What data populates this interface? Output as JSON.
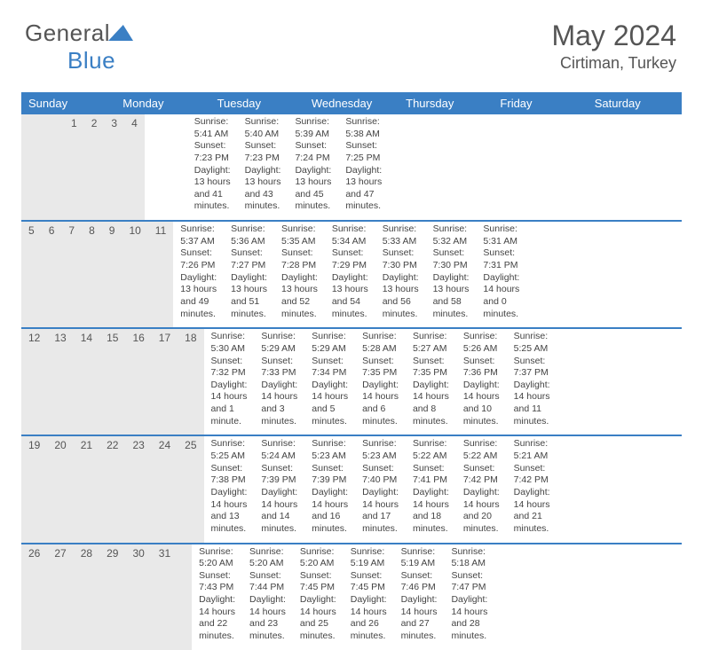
{
  "logo": {
    "text_general": "General",
    "text_blue": "Blue"
  },
  "header": {
    "month": "May 2024",
    "location": "Cirtiman, Turkey"
  },
  "colors": {
    "brand_blue": "#3a7fc4",
    "header_text": "#555555",
    "daynum_bg": "#e9e9e9",
    "body_text": "#444444",
    "background": "#ffffff"
  },
  "fonts": {
    "family": "Arial",
    "title_pt": 32,
    "subtitle_pt": 18,
    "dayhead_pt": 13,
    "daynum_pt": 12,
    "cell_pt": 10.5
  },
  "day_names": [
    "Sunday",
    "Monday",
    "Tuesday",
    "Wednesday",
    "Thursday",
    "Friday",
    "Saturday"
  ],
  "weeks": [
    [
      null,
      null,
      null,
      {
        "n": "1",
        "sr": "Sunrise: 5:41 AM",
        "ss": "Sunset: 7:23 PM",
        "d1": "Daylight: 13 hours",
        "d2": "and 41 minutes."
      },
      {
        "n": "2",
        "sr": "Sunrise: 5:40 AM",
        "ss": "Sunset: 7:23 PM",
        "d1": "Daylight: 13 hours",
        "d2": "and 43 minutes."
      },
      {
        "n": "3",
        "sr": "Sunrise: 5:39 AM",
        "ss": "Sunset: 7:24 PM",
        "d1": "Daylight: 13 hours",
        "d2": "and 45 minutes."
      },
      {
        "n": "4",
        "sr": "Sunrise: 5:38 AM",
        "ss": "Sunset: 7:25 PM",
        "d1": "Daylight: 13 hours",
        "d2": "and 47 minutes."
      }
    ],
    [
      {
        "n": "5",
        "sr": "Sunrise: 5:37 AM",
        "ss": "Sunset: 7:26 PM",
        "d1": "Daylight: 13 hours",
        "d2": "and 49 minutes."
      },
      {
        "n": "6",
        "sr": "Sunrise: 5:36 AM",
        "ss": "Sunset: 7:27 PM",
        "d1": "Daylight: 13 hours",
        "d2": "and 51 minutes."
      },
      {
        "n": "7",
        "sr": "Sunrise: 5:35 AM",
        "ss": "Sunset: 7:28 PM",
        "d1": "Daylight: 13 hours",
        "d2": "and 52 minutes."
      },
      {
        "n": "8",
        "sr": "Sunrise: 5:34 AM",
        "ss": "Sunset: 7:29 PM",
        "d1": "Daylight: 13 hours",
        "d2": "and 54 minutes."
      },
      {
        "n": "9",
        "sr": "Sunrise: 5:33 AM",
        "ss": "Sunset: 7:30 PM",
        "d1": "Daylight: 13 hours",
        "d2": "and 56 minutes."
      },
      {
        "n": "10",
        "sr": "Sunrise: 5:32 AM",
        "ss": "Sunset: 7:30 PM",
        "d1": "Daylight: 13 hours",
        "d2": "and 58 minutes."
      },
      {
        "n": "11",
        "sr": "Sunrise: 5:31 AM",
        "ss": "Sunset: 7:31 PM",
        "d1": "Daylight: 14 hours",
        "d2": "and 0 minutes."
      }
    ],
    [
      {
        "n": "12",
        "sr": "Sunrise: 5:30 AM",
        "ss": "Sunset: 7:32 PM",
        "d1": "Daylight: 14 hours",
        "d2": "and 1 minute."
      },
      {
        "n": "13",
        "sr": "Sunrise: 5:29 AM",
        "ss": "Sunset: 7:33 PM",
        "d1": "Daylight: 14 hours",
        "d2": "and 3 minutes."
      },
      {
        "n": "14",
        "sr": "Sunrise: 5:29 AM",
        "ss": "Sunset: 7:34 PM",
        "d1": "Daylight: 14 hours",
        "d2": "and 5 minutes."
      },
      {
        "n": "15",
        "sr": "Sunrise: 5:28 AM",
        "ss": "Sunset: 7:35 PM",
        "d1": "Daylight: 14 hours",
        "d2": "and 6 minutes."
      },
      {
        "n": "16",
        "sr": "Sunrise: 5:27 AM",
        "ss": "Sunset: 7:35 PM",
        "d1": "Daylight: 14 hours",
        "d2": "and 8 minutes."
      },
      {
        "n": "17",
        "sr": "Sunrise: 5:26 AM",
        "ss": "Sunset: 7:36 PM",
        "d1": "Daylight: 14 hours",
        "d2": "and 10 minutes."
      },
      {
        "n": "18",
        "sr": "Sunrise: 5:25 AM",
        "ss": "Sunset: 7:37 PM",
        "d1": "Daylight: 14 hours",
        "d2": "and 11 minutes."
      }
    ],
    [
      {
        "n": "19",
        "sr": "Sunrise: 5:25 AM",
        "ss": "Sunset: 7:38 PM",
        "d1": "Daylight: 14 hours",
        "d2": "and 13 minutes."
      },
      {
        "n": "20",
        "sr": "Sunrise: 5:24 AM",
        "ss": "Sunset: 7:39 PM",
        "d1": "Daylight: 14 hours",
        "d2": "and 14 minutes."
      },
      {
        "n": "21",
        "sr": "Sunrise: 5:23 AM",
        "ss": "Sunset: 7:39 PM",
        "d1": "Daylight: 14 hours",
        "d2": "and 16 minutes."
      },
      {
        "n": "22",
        "sr": "Sunrise: 5:23 AM",
        "ss": "Sunset: 7:40 PM",
        "d1": "Daylight: 14 hours",
        "d2": "and 17 minutes."
      },
      {
        "n": "23",
        "sr": "Sunrise: 5:22 AM",
        "ss": "Sunset: 7:41 PM",
        "d1": "Daylight: 14 hours",
        "d2": "and 18 minutes."
      },
      {
        "n": "24",
        "sr": "Sunrise: 5:22 AM",
        "ss": "Sunset: 7:42 PM",
        "d1": "Daylight: 14 hours",
        "d2": "and 20 minutes."
      },
      {
        "n": "25",
        "sr": "Sunrise: 5:21 AM",
        "ss": "Sunset: 7:42 PM",
        "d1": "Daylight: 14 hours",
        "d2": "and 21 minutes."
      }
    ],
    [
      {
        "n": "26",
        "sr": "Sunrise: 5:20 AM",
        "ss": "Sunset: 7:43 PM",
        "d1": "Daylight: 14 hours",
        "d2": "and 22 minutes."
      },
      {
        "n": "27",
        "sr": "Sunrise: 5:20 AM",
        "ss": "Sunset: 7:44 PM",
        "d1": "Daylight: 14 hours",
        "d2": "and 23 minutes."
      },
      {
        "n": "28",
        "sr": "Sunrise: 5:20 AM",
        "ss": "Sunset: 7:45 PM",
        "d1": "Daylight: 14 hours",
        "d2": "and 25 minutes."
      },
      {
        "n": "29",
        "sr": "Sunrise: 5:19 AM",
        "ss": "Sunset: 7:45 PM",
        "d1": "Daylight: 14 hours",
        "d2": "and 26 minutes."
      },
      {
        "n": "30",
        "sr": "Sunrise: 5:19 AM",
        "ss": "Sunset: 7:46 PM",
        "d1": "Daylight: 14 hours",
        "d2": "and 27 minutes."
      },
      {
        "n": "31",
        "sr": "Sunrise: 5:18 AM",
        "ss": "Sunset: 7:47 PM",
        "d1": "Daylight: 14 hours",
        "d2": "and 28 minutes."
      },
      null
    ]
  ]
}
